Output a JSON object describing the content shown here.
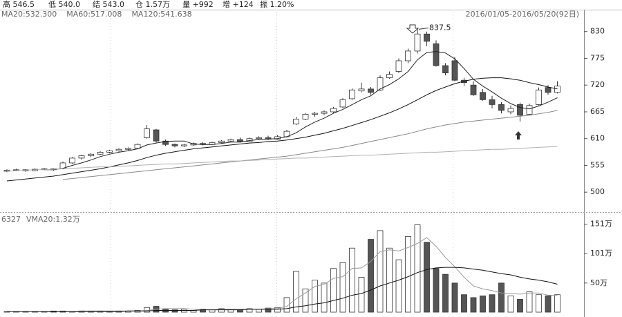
{
  "info_bar": {
    "items": [
      "高 546.5",
      "低 540.0",
      "结 543.0",
      "仓 1.57万",
      "量 +992",
      "增 +124",
      "振 1.20%"
    ]
  },
  "chart_data": [
    {
      "type": "candlestick",
      "date_range": "2016/01/05-2016/05/20(92日)",
      "open": [
        543,
        545,
        546,
        544,
        547,
        548,
        548,
        560,
        570,
        575,
        578,
        582,
        585,
        588,
        590,
        612,
        628,
        605,
        598,
        595,
        597,
        600,
        598,
        602,
        605,
        608,
        604,
        610,
        612,
        609,
        614,
        640,
        650,
        660,
        662,
        665,
        675,
        692,
        708,
        712,
        710,
        735,
        748,
        770,
        790,
        825,
        805,
        760,
        770,
        730,
        720,
        705,
        690,
        680,
        665,
        680,
        660,
        680,
        715,
        705
      ],
      "high": [
        547,
        548,
        547,
        549,
        550,
        549,
        563,
        572,
        577,
        580,
        584,
        587,
        590,
        592,
        600,
        638,
        630,
        608,
        600,
        599,
        602,
        603,
        604,
        607,
        610,
        612,
        612,
        615,
        616,
        617,
        628,
        655,
        663,
        665,
        668,
        675,
        693,
        713,
        725,
        716,
        740,
        748,
        775,
        795,
        837.5,
        830,
        812,
        765,
        778,
        735,
        728,
        712,
        698,
        685,
        678,
        684,
        682,
        715,
        720,
        728
      ],
      "low": [
        541,
        543,
        542,
        543,
        545,
        544,
        547,
        558,
        567,
        572,
        576,
        580,
        583,
        586,
        588,
        610,
        602,
        595,
        592,
        593,
        595,
        596,
        597,
        600,
        603,
        602,
        603,
        608,
        607,
        608,
        612,
        638,
        648,
        655,
        658,
        663,
        673,
        690,
        705,
        700,
        708,
        733,
        745,
        765,
        785,
        800,
        758,
        740,
        728,
        718,
        698,
        688,
        672,
        662,
        660,
        645,
        658,
        678,
        700,
        703
      ],
      "close": [
        545,
        546,
        544,
        547,
        548,
        546,
        560,
        570,
        575,
        578,
        582,
        585,
        588,
        590,
        598,
        630,
        605,
        598,
        595,
        597,
        600,
        598,
        602,
        605,
        608,
        604,
        610,
        612,
        609,
        614,
        625,
        650,
        660,
        662,
        665,
        672,
        690,
        710,
        712,
        705,
        735,
        742,
        770,
        790,
        825,
        810,
        760,
        745,
        730,
        725,
        700,
        690,
        680,
        668,
        672,
        658,
        678,
        710,
        705,
        718
      ],
      "up_color": "#ffffff",
      "down_color": "#555555",
      "series": [
        {
          "color": "#222222",
          "values": [
            null,
            null,
            null,
            null,
            546,
            546,
            549,
            555,
            560,
            566,
            573,
            578,
            582,
            585,
            589,
            597,
            601,
            604,
            605,
            605,
            599,
            598,
            598,
            600,
            603,
            603,
            606,
            608,
            609,
            610,
            614,
            622,
            634,
            644,
            652,
            662,
            670,
            680,
            690,
            698,
            712,
            721,
            733,
            748,
            772,
            787,
            789,
            786,
            774,
            754,
            732,
            718,
            706,
            693,
            682,
            674,
            671,
            677,
            685,
            694
          ]
        },
        {
          "name": "MA20:532.300",
          "color": "#111111",
          "values": [
            523,
            525,
            527,
            529,
            531,
            533,
            536,
            539,
            542,
            545,
            548,
            552,
            556,
            560,
            565,
            571,
            576,
            580,
            583,
            586,
            589,
            591,
            593,
            595,
            597,
            599,
            601,
            602,
            604,
            605,
            607,
            610,
            613,
            617,
            621,
            626,
            631,
            637,
            643,
            649,
            656,
            663,
            671,
            680,
            690,
            700,
            709,
            716,
            723,
            728,
            732,
            734,
            735,
            735,
            733,
            730,
            725,
            721,
            716,
            712
          ]
        },
        {
          "name": "MA60:517.008",
          "color": "#888888",
          "values": [
            null,
            null,
            null,
            null,
            null,
            null,
            526,
            528,
            530,
            532,
            534,
            536,
            538,
            540,
            542,
            544,
            546,
            548,
            550,
            552,
            554,
            556,
            558,
            560,
            562,
            564,
            566,
            568,
            570,
            572,
            574,
            577,
            580,
            583,
            586,
            589,
            592,
            596,
            600,
            604,
            608,
            612,
            616,
            620,
            625,
            630,
            634,
            638,
            641,
            644,
            646,
            648,
            650,
            652,
            654,
            656,
            658,
            661,
            664,
            668
          ]
        },
        {
          "name": "MA120:541.638",
          "color": "#b0b0b0",
          "values": [
            543,
            544,
            545,
            546,
            546,
            547,
            548,
            549,
            550,
            551,
            552,
            552,
            553,
            554,
            555,
            556,
            557,
            558,
            558,
            559,
            560,
            561,
            562,
            563,
            564,
            564,
            565,
            566,
            567,
            568,
            569,
            570,
            570,
            571,
            572,
            573,
            574,
            575,
            576,
            576,
            577,
            578,
            579,
            580,
            581,
            582,
            582,
            583,
            584,
            585,
            586,
            587,
            588,
            588,
            589,
            590,
            591,
            592,
            593,
            594
          ]
        }
      ],
      "ylim": [
        462,
        875
      ],
      "yticks": [
        500,
        555,
        610,
        665,
        720,
        775,
        830
      ]
    },
    {
      "type": "bar",
      "title": "6327",
      "values": [
        1,
        1,
        1,
        1,
        1,
        2,
        2,
        1,
        2,
        1,
        2,
        1,
        2,
        2,
        3,
        8,
        10,
        5,
        4,
        5,
        3,
        5,
        4,
        6,
        5,
        4,
        6,
        5,
        7,
        8,
        25,
        70,
        40,
        55,
        50,
        75,
        85,
        110,
        60,
        125,
        140,
        110,
        90,
        130,
        150,
        120,
        75,
        65,
        50,
        30,
        25,
        28,
        30,
        50,
        28,
        22,
        35,
        30,
        28,
        30
      ],
      "series": [
        {
          "color": "#999999",
          "values": [
            null,
            null,
            null,
            null,
            1,
            1,
            1,
            1,
            2,
            2,
            2,
            2,
            2,
            2,
            2,
            3,
            5,
            6,
            6,
            6,
            5,
            4,
            4,
            5,
            5,
            5,
            5,
            5,
            6,
            6,
            10,
            23,
            33,
            44,
            48,
            58,
            61,
            75,
            76,
            87,
            104,
            107,
            105,
            111,
            118,
            128,
            113,
            94,
            78,
            60,
            45,
            40,
            37,
            33,
            32,
            31,
            33,
            33,
            29,
            29
          ]
        },
        {
          "name": "VMA20:1.32万",
          "color": "#111111",
          "values": [
            1,
            1,
            1,
            1,
            1,
            1,
            1,
            1,
            1,
            1,
            1,
            1,
            1,
            2,
            2,
            2,
            3,
            3,
            3,
            3,
            3,
            4,
            4,
            4,
            4,
            4,
            5,
            5,
            5,
            5,
            6,
            9,
            11,
            14,
            16,
            20,
            24,
            29,
            32,
            38,
            45,
            50,
            55,
            61,
            68,
            73,
            76,
            77,
            77,
            76,
            74,
            72,
            69,
            66,
            64,
            60,
            57,
            55,
            52,
            48
          ]
        }
      ],
      "ylim": [
        0,
        166
      ],
      "yticks": [
        {
          "value": 50,
          "label": "50万"
        },
        {
          "value": 101,
          "label": "101万"
        },
        {
          "value": 151,
          "label": "151万"
        }
      ]
    }
  ]
}
